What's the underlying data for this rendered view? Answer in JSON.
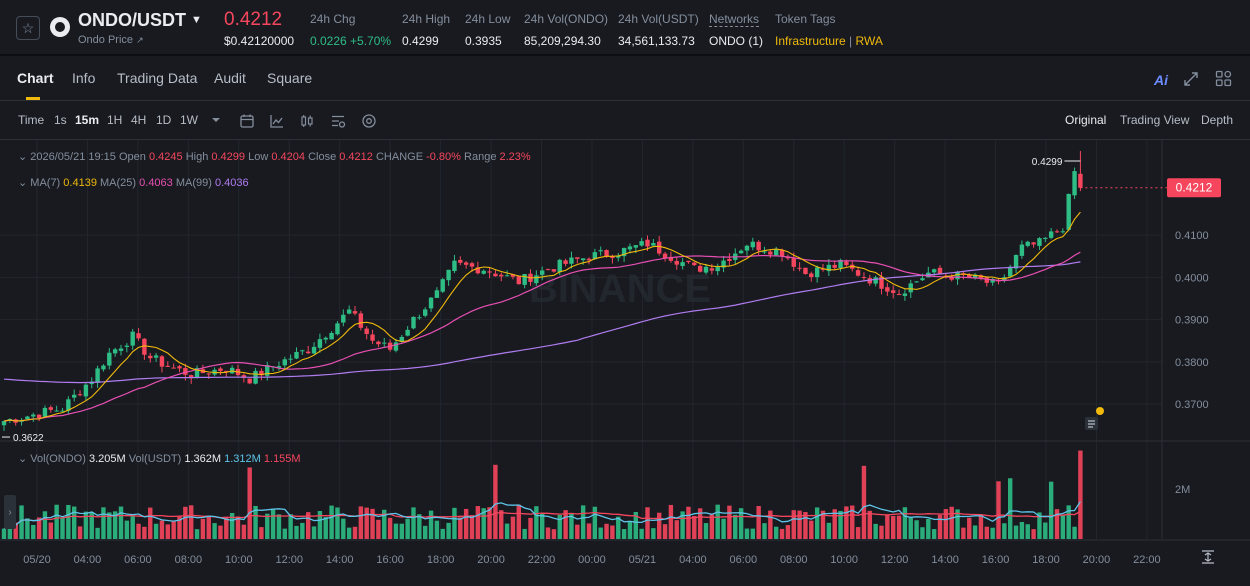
{
  "header": {
    "pair": "ONDO/USDT",
    "pair_caret": "▼",
    "subtitle": "Ondo Price",
    "subtitle_arrow": "↗",
    "price": "0.4212",
    "price_usd": "$0.42120000",
    "stats": [
      {
        "label": "24h Chg",
        "value": "0.0226 +5.70%",
        "color": "#2ebd85"
      },
      {
        "label": "24h High",
        "value": "0.4299"
      },
      {
        "label": "24h Low",
        "value": "0.3935"
      },
      {
        "label": "24h Vol(ONDO)",
        "value": "85,209,294.30"
      },
      {
        "label": "24h Vol(USDT)",
        "value": "34,561,133.73"
      }
    ],
    "networks_label": "Networks",
    "networks_value": "ONDO (1)",
    "token_tags_label": "Token Tags",
    "tag1": "Infrastructure",
    "tag_sep": "|",
    "tag2": "RWA"
  },
  "tabs": {
    "items": [
      "Chart",
      "Info",
      "Trading Data",
      "Audit",
      "Square"
    ],
    "active": "Chart",
    "ai_label": "Ai"
  },
  "toolbar": {
    "intervals": [
      "Time",
      "1s",
      "15m",
      "1H",
      "4H",
      "1D",
      "1W"
    ],
    "active_interval": "15m",
    "views": [
      "Original",
      "Trading View",
      "Depth"
    ],
    "active_view": "Original"
  },
  "legend": {
    "datetime": "2026/05/21 19:15",
    "open_label": "Open",
    "open": "0.4245",
    "high_label": "High",
    "high": "0.4299",
    "low_label": "Low",
    "low": "0.4204",
    "close_label": "Close",
    "close": "0.4212",
    "change_label": "CHANGE",
    "change": "-0.80%",
    "range_label": "Range",
    "range": "2.23%",
    "ma7_label": "MA(7)",
    "ma7": "0.4139",
    "ma25_label": "MA(25)",
    "ma25": "0.4063",
    "ma99_label": "MA(99)",
    "ma99": "0.4036",
    "vol_label": "Vol(ONDO)",
    "vol": "3.205M",
    "volusdt_label": "Vol(USDT)",
    "volusdt": "1.362M",
    "volma1": "1.312M",
    "volma2": "1.155M"
  },
  "watermark": "BINANCE",
  "colors": {
    "up": "#2ebd85",
    "down": "#f6465d",
    "ma7": "#f0b90b",
    "ma25": "#e84fb3",
    "ma99": "#b07cf0",
    "vol_ma1": "#5ec4e8",
    "vol_ma2": "#f6465d",
    "accent": "#f0b90b"
  },
  "chart_data": {
    "type": "candlestick",
    "interval": "15m",
    "current_price": "0.4212",
    "high_marker": "0.4299",
    "low_marker": "0.3622",
    "ylim": [
      0.3615,
      0.4325
    ],
    "y_ticks": [
      "0.4100",
      "0.4000",
      "0.3900",
      "0.3800",
      "0.3700"
    ],
    "x_ticks": [
      "05/20",
      "04:00",
      "06:00",
      "08:00",
      "10:00",
      "12:00",
      "14:00",
      "16:00",
      "18:00",
      "20:00",
      "22:00",
      "00:00",
      "05/21",
      "04:00",
      "06:00",
      "08:00",
      "10:00",
      "12:00",
      "14:00",
      "16:00",
      "18:00",
      "20:00",
      "22:00"
    ],
    "volume_axis_label": "2M",
    "close_points": [
      [
        0,
        0.366
      ],
      [
        10,
        0.369
      ],
      [
        15,
        0.376
      ],
      [
        18,
        0.382
      ],
      [
        22,
        0.386
      ],
      [
        25,
        0.381
      ],
      [
        28,
        0.379
      ],
      [
        32,
        0.377
      ],
      [
        38,
        0.3785
      ],
      [
        42,
        0.376
      ],
      [
        46,
        0.379
      ],
      [
        52,
        0.383
      ],
      [
        56,
        0.388
      ],
      [
        59,
        0.392
      ],
      [
        63,
        0.385
      ],
      [
        66,
        0.383
      ],
      [
        70,
        0.39
      ],
      [
        74,
        0.396
      ],
      [
        77,
        0.403
      ],
      [
        82,
        0.402
      ],
      [
        88,
        0.399
      ],
      [
        93,
        0.402
      ],
      [
        100,
        0.405
      ],
      [
        105,
        0.406
      ],
      [
        110,
        0.408
      ],
      [
        114,
        0.405
      ],
      [
        118,
        0.402
      ],
      [
        122,
        0.403
      ],
      [
        127,
        0.408
      ],
      [
        133,
        0.406
      ],
      [
        137,
        0.401
      ],
      [
        143,
        0.403
      ],
      [
        149,
        0.399
      ],
      [
        153,
        0.3965
      ],
      [
        158,
        0.401
      ],
      [
        165,
        0.4
      ],
      [
        170,
        0.398
      ],
      [
        174,
        0.407
      ],
      [
        177,
        0.408
      ],
      [
        181,
        0.412
      ],
      [
        183,
        0.425
      ],
      [
        184,
        0.4212
      ]
    ]
  }
}
